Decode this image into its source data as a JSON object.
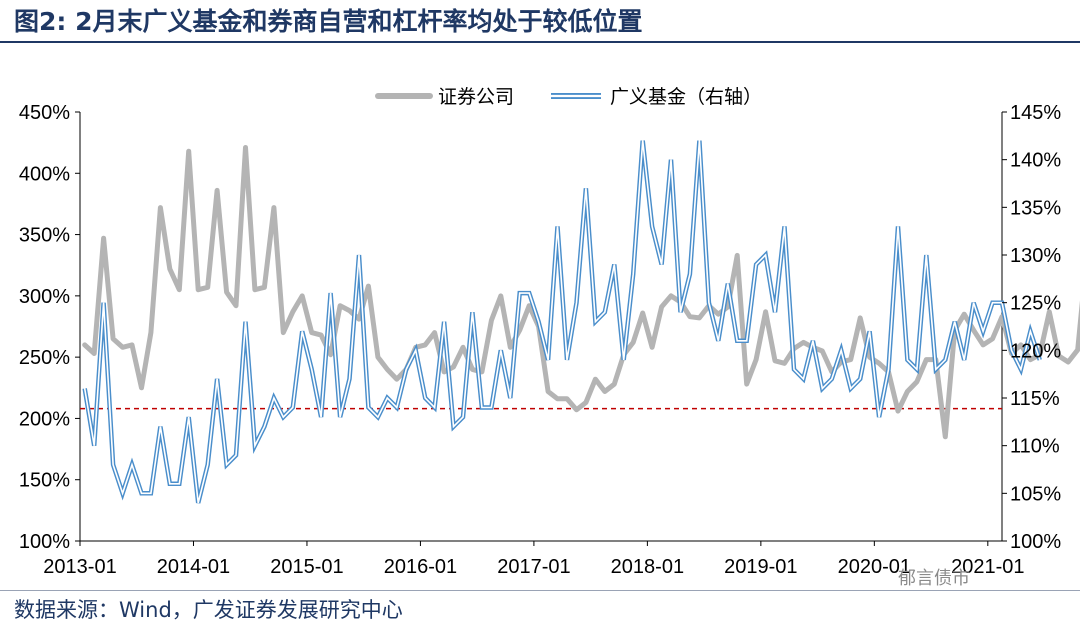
{
  "title": "图2:  2月末广义基金和券商自营和杠杆率均处于较低位置",
  "source": "数据来源：Wind，广发证券发展研究中心",
  "watermark": "郁言债市",
  "chart_data": {
    "type": "line",
    "x_ticks": [
      "2013-01",
      "2014-01",
      "2015-01",
      "2016-01",
      "2017-01",
      "2018-01",
      "2019-01",
      "2020-01",
      "2021-01"
    ],
    "y_left": {
      "min": 100,
      "max": 450,
      "step": 50,
      "format": "%",
      "ticks": [
        "100%",
        "150%",
        "200%",
        "250%",
        "300%",
        "350%",
        "400%",
        "450%"
      ]
    },
    "y_right": {
      "min": 100,
      "max": 145,
      "step": 5,
      "format": "%",
      "ticks": [
        "100%",
        "105%",
        "110%",
        "115%",
        "120%",
        "125%",
        "130%",
        "135%",
        "140%",
        "145%"
      ]
    },
    "reference_line": {
      "axis": "left",
      "value": 208,
      "color": "#c00000",
      "style": "dashed"
    },
    "series": [
      {
        "name": "证券公司",
        "axis": "left",
        "color": "#b4b4b4",
        "start": "2013-01",
        "values": [
          260,
          253,
          347,
          265,
          258,
          260,
          225,
          270,
          372,
          322,
          305,
          418,
          305,
          307,
          386,
          303,
          292,
          421,
          305,
          307,
          372,
          270,
          287,
          300,
          270,
          268,
          252,
          292,
          288,
          281,
          308,
          250,
          240,
          232,
          240,
          258,
          260,
          270,
          238,
          242,
          258,
          240,
          238,
          280,
          300,
          258,
          272,
          292,
          275,
          222,
          216,
          216,
          207,
          213,
          232,
          222,
          228,
          252,
          262,
          286,
          258,
          291,
          300,
          295,
          283,
          282,
          292,
          285,
          291,
          333,
          228,
          248,
          287,
          247,
          245,
          257,
          262,
          258,
          255,
          238,
          246,
          248,
          282,
          250,
          245,
          238,
          206,
          222,
          230,
          248,
          248,
          185,
          272,
          285,
          272,
          260,
          265,
          283,
          253,
          260,
          248,
          252,
          287,
          251,
          246,
          256,
          335,
          205
        ]
      },
      {
        "name": "广义基金（右轴）",
        "axis": "right",
        "color": "#4a8ecb",
        "start": "2013-01",
        "values": [
          116,
          110,
          125,
          108,
          105,
          108,
          105,
          105,
          112,
          106,
          106,
          113,
          104,
          108,
          117,
          108,
          109,
          123,
          110,
          112,
          115,
          113,
          114,
          122,
          118,
          113,
          126,
          113,
          117,
          130,
          114,
          113,
          115,
          114,
          118,
          120,
          115,
          114,
          123,
          112,
          113,
          124,
          114,
          114,
          120,
          115,
          126,
          126,
          123,
          119,
          133,
          119,
          125,
          137,
          123,
          124,
          129,
          119,
          128,
          142,
          133,
          129,
          140,
          124,
          128,
          142,
          125,
          121,
          127,
          121,
          121,
          129,
          130,
          124,
          133,
          118,
          117,
          121,
          116,
          117,
          120,
          116,
          117,
          122,
          113,
          118,
          133,
          119,
          118,
          130,
          118,
          119,
          123,
          119,
          125,
          122,
          125,
          125,
          120,
          118,
          122,
          119
        ]
      }
    ]
  }
}
